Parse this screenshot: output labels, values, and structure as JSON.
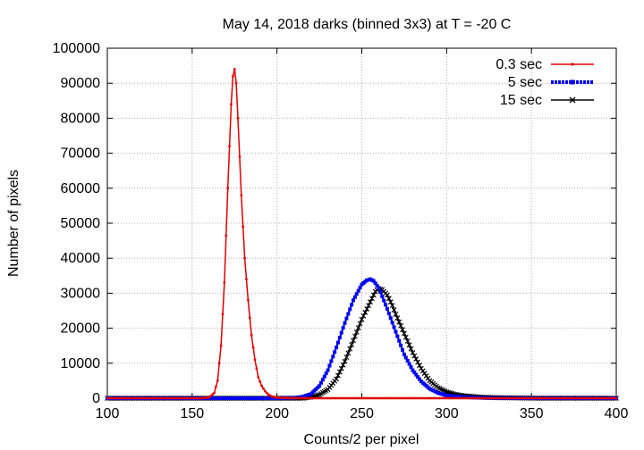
{
  "chart_data": {
    "type": "line",
    "title": "May 14, 2018 darks (binned 3x3) at T = -20 C",
    "xlabel": "Counts/2 per pixel",
    "ylabel": "Number of pixels",
    "xlim": [
      100,
      400
    ],
    "ylim": [
      0,
      100000
    ],
    "xticks": [
      "100",
      "150",
      "200",
      "250",
      "300",
      "350",
      "400"
    ],
    "yticks": [
      "0",
      "10000",
      "20000",
      "30000",
      "40000",
      "50000",
      "60000",
      "70000",
      "80000",
      "90000",
      "100000"
    ],
    "grid": true,
    "legend_position": "top-right",
    "series": [
      {
        "name": "0.3 sec",
        "color": "#e00000",
        "marker": "small-dot",
        "x": [
          100,
          155,
          160,
          163,
          165,
          167,
          169,
          171,
          173,
          174,
          175,
          176,
          177,
          179,
          181,
          183,
          185,
          187,
          189,
          191,
          193,
          195,
          197,
          200,
          205,
          210,
          220,
          250,
          300,
          350,
          400
        ],
        "y": [
          0,
          0,
          200,
          1500,
          5000,
          15000,
          33000,
          60000,
          84000,
          92000,
          94000,
          90000,
          80000,
          58000,
          40000,
          28000,
          18000,
          11000,
          6000,
          3500,
          2000,
          1000,
          500,
          200,
          80,
          30,
          0,
          0,
          0,
          0,
          0
        ]
      },
      {
        "name": "5 sec",
        "color": "#0000ee",
        "marker": "dense-dots",
        "x": [
          100,
          200,
          210,
          215,
          220,
          225,
          230,
          235,
          240,
          245,
          250,
          253,
          255,
          257,
          260,
          265,
          270,
          275,
          280,
          285,
          290,
          295,
          300,
          310,
          320,
          330,
          350,
          400
        ],
        "y": [
          0,
          0,
          100,
          400,
          1200,
          3500,
          8000,
          14500,
          21500,
          28000,
          32500,
          33700,
          34000,
          33500,
          31500,
          25500,
          19000,
          12500,
          8000,
          4800,
          2700,
          1500,
          800,
          300,
          120,
          40,
          0,
          0
        ]
      },
      {
        "name": "15 sec",
        "color": "#000000",
        "marker": "x",
        "x": [
          100,
          215,
          220,
          225,
          230,
          235,
          240,
          245,
          250,
          255,
          258,
          260,
          262,
          265,
          268,
          270,
          275,
          280,
          285,
          290,
          295,
          300,
          305,
          310,
          320,
          330,
          350,
          400
        ],
        "y": [
          0,
          0,
          300,
          1000,
          2500,
          5500,
          10500,
          16500,
          22500,
          27500,
          30500,
          31300,
          31000,
          29500,
          26500,
          24000,
          18500,
          13000,
          8500,
          5000,
          3000,
          1800,
          1100,
          700,
          300,
          150,
          30,
          0
        ]
      }
    ]
  }
}
